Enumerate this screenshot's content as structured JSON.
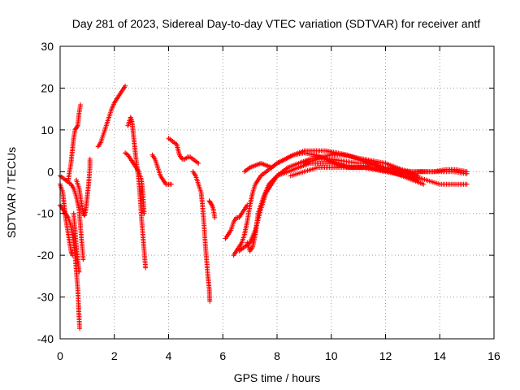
{
  "chart_data": {
    "type": "scatter",
    "title": "Day 281 of 2023, Sidereal Day-to-day VTEC variation (SDTVAR) for receiver antf",
    "xlabel": "GPS time / hours",
    "ylabel": "SDTVAR / TECUs",
    "xlim": [
      0,
      16
    ],
    "ylim": [
      -40,
      30
    ],
    "xticks": [
      0,
      2,
      4,
      6,
      8,
      10,
      12,
      14,
      16
    ],
    "yticks": [
      -40,
      -30,
      -20,
      -10,
      0,
      10,
      20,
      30
    ],
    "xtick_labels": [
      "0",
      "2",
      "4",
      "6",
      "8",
      "10",
      "12",
      "14",
      "16"
    ],
    "ytick_labels": [
      "-40",
      "-30",
      "-20",
      "-10",
      "0",
      "10",
      "20",
      "30"
    ],
    "grid": true,
    "marker": "plus",
    "color": "#ff0000",
    "tracks": [
      [
        [
          0.0,
          -1
        ],
        [
          0.1,
          -1.5
        ],
        [
          0.2,
          -2
        ],
        [
          0.3,
          -2.5
        ],
        [
          0.4,
          -3
        ],
        [
          0.5,
          -4
        ],
        [
          0.6,
          -6
        ],
        [
          0.7,
          -9
        ],
        [
          0.75,
          -13
        ],
        [
          0.8,
          -17
        ],
        [
          0.85,
          -21
        ]
      ],
      [
        [
          0.0,
          -3
        ],
        [
          0.1,
          -5
        ],
        [
          0.15,
          -8
        ],
        [
          0.2,
          -11
        ],
        [
          0.25,
          -13
        ],
        [
          0.3,
          -15
        ],
        [
          0.35,
          -17
        ],
        [
          0.4,
          -19
        ],
        [
          0.45,
          -20
        ]
      ],
      [
        [
          0.0,
          -8
        ],
        [
          0.1,
          -9
        ],
        [
          0.2,
          -10
        ],
        [
          0.3,
          -11
        ],
        [
          0.4,
          -13
        ],
        [
          0.5,
          -17
        ],
        [
          0.55,
          -20
        ],
        [
          0.6,
          -24
        ],
        [
          0.65,
          -28
        ],
        [
          0.68,
          -32
        ],
        [
          0.7,
          -35
        ],
        [
          0.72,
          -37.5
        ]
      ],
      [
        [
          0.3,
          -2
        ],
        [
          0.35,
          0
        ],
        [
          0.4,
          2
        ],
        [
          0.45,
          5
        ],
        [
          0.5,
          8
        ],
        [
          0.55,
          10
        ],
        [
          0.6,
          10.5
        ],
        [
          0.65,
          11
        ],
        [
          0.7,
          14
        ],
        [
          0.75,
          16
        ]
      ],
      [
        [
          0.5,
          -10
        ],
        [
          0.55,
          -14
        ],
        [
          0.6,
          -18
        ],
        [
          0.65,
          -21
        ],
        [
          0.7,
          -24
        ]
      ],
      [
        [
          0.6,
          -2
        ],
        [
          0.7,
          -4
        ],
        [
          0.75,
          -6
        ],
        [
          0.8,
          -8
        ],
        [
          0.85,
          -10
        ],
        [
          0.9,
          -10.5
        ],
        [
          0.95,
          -9
        ],
        [
          1.0,
          -6
        ],
        [
          1.05,
          -3
        ],
        [
          1.1,
          1
        ],
        [
          1.1,
          3
        ]
      ],
      [
        [
          1.4,
          6
        ],
        [
          1.5,
          7
        ],
        [
          1.6,
          9
        ],
        [
          1.7,
          11
        ],
        [
          1.8,
          13
        ],
        [
          1.9,
          15
        ],
        [
          2.0,
          16.5
        ],
        [
          2.1,
          17.5
        ],
        [
          2.2,
          18.5
        ],
        [
          2.3,
          19.5
        ],
        [
          2.4,
          20.5
        ]
      ],
      [
        [
          2.5,
          11
        ],
        [
          2.6,
          13
        ],
        [
          2.65,
          12
        ],
        [
          2.7,
          9
        ],
        [
          2.75,
          6
        ],
        [
          2.8,
          3
        ],
        [
          2.85,
          0.5
        ],
        [
          2.9,
          -2
        ],
        [
          2.95,
          -6
        ],
        [
          3.0,
          -11
        ],
        [
          3.05,
          -15
        ],
        [
          3.1,
          -19
        ],
        [
          3.15,
          -23
        ]
      ],
      [
        [
          2.4,
          4.5
        ],
        [
          2.5,
          4
        ],
        [
          2.6,
          3
        ],
        [
          2.7,
          2
        ],
        [
          2.8,
          1
        ],
        [
          2.9,
          0
        ],
        [
          3.0,
          -2
        ],
        [
          3.05,
          -5
        ],
        [
          3.1,
          -10
        ]
      ],
      [
        [
          3.4,
          4
        ],
        [
          3.5,
          3
        ],
        [
          3.6,
          1
        ],
        [
          3.7,
          -1
        ],
        [
          3.8,
          -2
        ],
        [
          3.9,
          -3
        ],
        [
          4.0,
          -3
        ],
        [
          4.1,
          -3
        ]
      ],
      [
        [
          4.0,
          8
        ],
        [
          4.1,
          7.5
        ],
        [
          4.2,
          7
        ],
        [
          4.3,
          6.5
        ],
        [
          4.4,
          4
        ],
        [
          4.5,
          3
        ],
        [
          4.6,
          3
        ],
        [
          4.7,
          3.5
        ],
        [
          4.8,
          3.5
        ],
        [
          4.9,
          3
        ],
        [
          5.0,
          2.5
        ],
        [
          5.1,
          2
        ]
      ],
      [
        [
          4.9,
          0
        ],
        [
          5.0,
          -1
        ],
        [
          5.1,
          -3
        ],
        [
          5.2,
          -5
        ],
        [
          5.25,
          -8
        ],
        [
          5.3,
          -12
        ],
        [
          5.35,
          -17
        ],
        [
          5.4,
          -21
        ],
        [
          5.45,
          -25
        ],
        [
          5.5,
          -28
        ],
        [
          5.52,
          -31
        ]
      ],
      [
        [
          5.5,
          -7
        ],
        [
          5.55,
          -7.5
        ],
        [
          5.6,
          -8
        ],
        [
          5.65,
          -9
        ],
        [
          5.7,
          -11
        ]
      ],
      [
        [
          6.1,
          -16
        ],
        [
          6.2,
          -15
        ],
        [
          6.3,
          -14
        ],
        [
          6.4,
          -12
        ],
        [
          6.5,
          -11
        ],
        [
          6.6,
          -11
        ],
        [
          6.7,
          -10
        ],
        [
          6.8,
          -9
        ],
        [
          6.9,
          -8
        ]
      ],
      [
        [
          6.4,
          -20
        ],
        [
          6.5,
          -19
        ],
        [
          6.6,
          -18
        ],
        [
          6.7,
          -17
        ],
        [
          6.8,
          -15
        ],
        [
          6.9,
          -12
        ],
        [
          7.0,
          -8
        ],
        [
          7.1,
          -5
        ],
        [
          7.2,
          -3
        ],
        [
          7.4,
          -1
        ],
        [
          7.6,
          0
        ],
        [
          7.8,
          1
        ],
        [
          8.0,
          2
        ],
        [
          8.3,
          3
        ],
        [
          8.6,
          4
        ],
        [
          9.0,
          5
        ],
        [
          9.4,
          5
        ],
        [
          9.8,
          5
        ],
        [
          10.2,
          4.5
        ],
        [
          10.6,
          4
        ],
        [
          11.0,
          3
        ],
        [
          11.4,
          2
        ],
        [
          11.8,
          1
        ],
        [
          12.2,
          0
        ],
        [
          12.6,
          -1
        ],
        [
          13.0,
          -2
        ],
        [
          13.4,
          -3
        ]
      ],
      [
        [
          6.6,
          -19
        ],
        [
          6.8,
          -18
        ],
        [
          7.0,
          -17
        ],
        [
          7.2,
          -14
        ],
        [
          7.4,
          -9
        ],
        [
          7.6,
          -5
        ],
        [
          7.8,
          -3
        ],
        [
          8.0,
          -1
        ],
        [
          8.4,
          1
        ],
        [
          8.8,
          2
        ],
        [
          9.2,
          3
        ],
        [
          9.6,
          3.5
        ],
        [
          10.0,
          4
        ],
        [
          10.4,
          4
        ],
        [
          10.8,
          3.5
        ],
        [
          11.2,
          3
        ],
        [
          11.6,
          2.5
        ],
        [
          12.0,
          2
        ],
        [
          12.4,
          1
        ],
        [
          12.8,
          0
        ],
        [
          13.2,
          -1
        ]
      ],
      [
        [
          6.9,
          -17
        ],
        [
          7.0,
          -19
        ],
        [
          7.1,
          -18
        ],
        [
          7.2,
          -15
        ],
        [
          7.3,
          -10
        ],
        [
          7.5,
          -6
        ],
        [
          7.7,
          -3
        ],
        [
          8.0,
          -1
        ],
        [
          8.4,
          0
        ],
        [
          8.8,
          1
        ],
        [
          9.2,
          2
        ],
        [
          9.6,
          2
        ],
        [
          10.0,
          2
        ],
        [
          10.4,
          1.5
        ],
        [
          10.8,
          1
        ],
        [
          11.2,
          1
        ],
        [
          11.6,
          0.5
        ],
        [
          12.0,
          0
        ],
        [
          12.4,
          -0.5
        ],
        [
          12.8,
          -1
        ],
        [
          13.2,
          -2
        ]
      ],
      [
        [
          6.8,
          0
        ],
        [
          7.0,
          1
        ],
        [
          7.2,
          1.5
        ],
        [
          7.4,
          2
        ],
        [
          7.6,
          1.5
        ],
        [
          7.8,
          1
        ],
        [
          8.0,
          2
        ],
        [
          8.3,
          3
        ],
        [
          8.6,
          4
        ],
        [
          9.0,
          4.5
        ],
        [
          9.4,
          4
        ],
        [
          9.8,
          3
        ],
        [
          10.2,
          2
        ],
        [
          10.6,
          1
        ],
        [
          11.0,
          1
        ],
        [
          11.4,
          1
        ],
        [
          11.8,
          0.5
        ],
        [
          12.2,
          0
        ],
        [
          12.6,
          0
        ],
        [
          13.0,
          0
        ],
        [
          13.4,
          0
        ],
        [
          13.8,
          0
        ],
        [
          14.2,
          0.5
        ],
        [
          14.6,
          0.5
        ],
        [
          15.0,
          0
        ]
      ],
      [
        [
          8.5,
          -1
        ],
        [
          9.0,
          0
        ],
        [
          9.5,
          1
        ],
        [
          10.0,
          1
        ],
        [
          10.5,
          1
        ],
        [
          11.0,
          1
        ],
        [
          11.5,
          1
        ],
        [
          12.0,
          1
        ],
        [
          12.5,
          0.5
        ],
        [
          13.0,
          0
        ],
        [
          13.5,
          0
        ],
        [
          14.0,
          0
        ],
        [
          14.5,
          0
        ],
        [
          15.0,
          -0.5
        ]
      ],
      [
        [
          9.0,
          2
        ],
        [
          9.5,
          3
        ],
        [
          10.0,
          3
        ],
        [
          10.5,
          2.5
        ],
        [
          11.0,
          2
        ],
        [
          11.5,
          2
        ],
        [
          12.0,
          1
        ],
        [
          12.5,
          0
        ],
        [
          13.0,
          -1
        ],
        [
          13.5,
          -2
        ],
        [
          14.0,
          -3
        ],
        [
          14.5,
          -3
        ],
        [
          15.0,
          -3
        ]
      ]
    ]
  }
}
